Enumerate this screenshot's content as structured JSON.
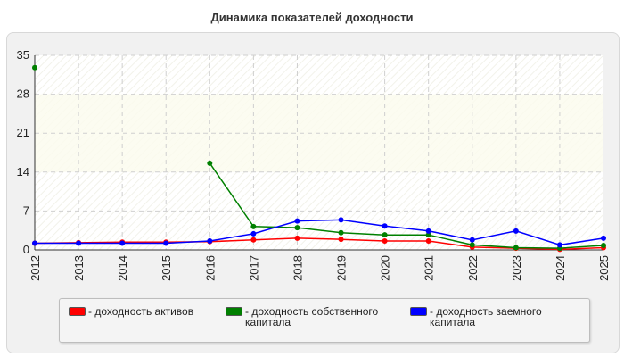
{
  "page": {
    "title": "Динамика показателей доходности"
  },
  "chart_data": {
    "type": "line",
    "title": "Динамика показателей доходности",
    "xlabel": "",
    "ylabel": "",
    "categories": [
      "2012",
      "2013",
      "2014",
      "2015",
      "2016",
      "2017",
      "2018",
      "2019",
      "2020",
      "2021",
      "2022",
      "2023",
      "2024",
      "2025"
    ],
    "ylim": [
      0,
      35
    ],
    "yticks": [
      "0",
      "7",
      "14",
      "21",
      "28",
      "35"
    ],
    "grid": true,
    "legend_position": "bottom",
    "series": [
      {
        "name": "- доходность активов",
        "color": "#ff0000",
        "values": [
          1.2,
          1.3,
          1.4,
          1.4,
          1.5,
          1.8,
          2.1,
          1.9,
          1.6,
          1.6,
          0.5,
          0.3,
          0.1,
          0.4
        ]
      },
      {
        "name": "- доходность собственного капитала",
        "color": "#008000",
        "values": [
          32.8,
          null,
          null,
          null,
          15.6,
          4.2,
          4.0,
          3.1,
          2.7,
          2.7,
          0.9,
          0.4,
          0.3,
          0.8
        ]
      },
      {
        "name": "- доходность заемного капитала",
        "color": "#0000ff",
        "values": [
          1.2,
          1.2,
          1.2,
          1.2,
          1.6,
          2.9,
          5.2,
          5.4,
          4.3,
          3.4,
          1.8,
          3.4,
          0.9,
          2.1
        ]
      }
    ]
  }
}
